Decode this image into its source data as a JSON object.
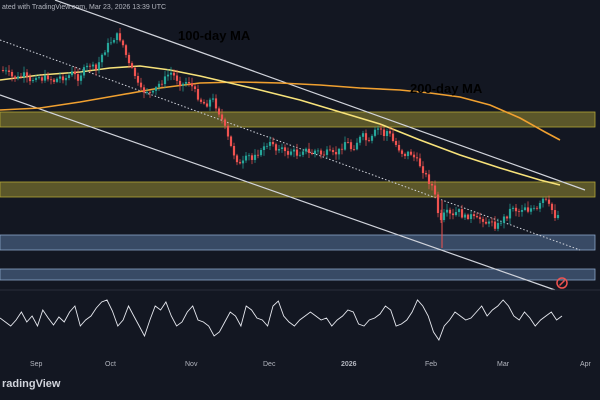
{
  "caption": "ated with TradingView.com, Mar 23, 2026 13:39 UTC",
  "brand": "radingView",
  "colors": {
    "background": "#131722",
    "up_candle": "#26a69a",
    "down_candle": "#ef5350",
    "ma100": "#f7e27a",
    "ma200": "#f0a030",
    "zone_yellow": "#b3a635",
    "zone_blue": "#5d7da8",
    "channel": "#d1d4dc",
    "rsi": "#e6e8ef"
  },
  "chart_data": {
    "type": "candlestick",
    "title": "",
    "xlabel": "",
    "ylabel": "",
    "x_ticks": [
      "Sep",
      "Oct",
      "Nov",
      "Dec",
      "2026",
      "Feb",
      "Mar",
      "Apr"
    ],
    "annotations": [
      {
        "text": "100-day MA",
        "color": "#f7e27a"
      },
      {
        "text": "200-day MA",
        "color": "#f0a030"
      }
    ],
    "close_path": [
      [
        0,
        70
      ],
      [
        6,
        72
      ],
      [
        12,
        77
      ],
      [
        18,
        78
      ],
      [
        24,
        75
      ],
      [
        30,
        83
      ],
      [
        36,
        75
      ],
      [
        42,
        79
      ],
      [
        48,
        77
      ],
      [
        54,
        81
      ],
      [
        60,
        77
      ],
      [
        66,
        78
      ],
      [
        72,
        73
      ],
      [
        78,
        78
      ],
      [
        84,
        70
      ],
      [
        90,
        65
      ],
      [
        96,
        70
      ],
      [
        102,
        55
      ],
      [
        108,
        45
      ],
      [
        114,
        38
      ],
      [
        118,
        35
      ],
      [
        122,
        42
      ],
      [
        126,
        55
      ],
      [
        130,
        68
      ],
      [
        134,
        72
      ],
      [
        138,
        85
      ],
      [
        142,
        92
      ],
      [
        146,
        90
      ],
      [
        152,
        95
      ],
      [
        158,
        85
      ],
      [
        164,
        80
      ],
      [
        170,
        72
      ],
      [
        176,
        78
      ],
      [
        182,
        85
      ],
      [
        188,
        80
      ],
      [
        194,
        90
      ],
      [
        200,
        100
      ],
      [
        206,
        105
      ],
      [
        212,
        98
      ],
      [
        218,
        110
      ],
      [
        224,
        125
      ],
      [
        228,
        138
      ],
      [
        232,
        150
      ],
      [
        236,
        158
      ],
      [
        240,
        165
      ],
      [
        244,
        162
      ],
      [
        248,
        155
      ],
      [
        252,
        160
      ],
      [
        256,
        150
      ],
      [
        260,
        155
      ],
      [
        264,
        145
      ],
      [
        268,
        148
      ],
      [
        272,
        140
      ],
      [
        276,
        150
      ],
      [
        280,
        145
      ],
      [
        286,
        155
      ],
      [
        292,
        150
      ],
      [
        298,
        155
      ],
      [
        304,
        148
      ],
      [
        310,
        155
      ],
      [
        316,
        150
      ],
      [
        322,
        155
      ],
      [
        328,
        152
      ],
      [
        334,
        155
      ],
      [
        340,
        150
      ],
      [
        346,
        140
      ],
      [
        352,
        150
      ],
      [
        358,
        140
      ],
      [
        364,
        135
      ],
      [
        368,
        145
      ],
      [
        372,
        138
      ],
      [
        376,
        130
      ],
      [
        380,
        128
      ],
      [
        384,
        135
      ],
      [
        388,
        130
      ],
      [
        392,
        140
      ],
      [
        396,
        145
      ],
      [
        400,
        150
      ],
      [
        404,
        155
      ],
      [
        410,
        152
      ],
      [
        416,
        160
      ],
      [
        420,
        165
      ],
      [
        424,
        172
      ],
      [
        428,
        180
      ],
      [
        432,
        186
      ],
      [
        436,
        200
      ],
      [
        440,
        225
      ],
      [
        444,
        215
      ],
      [
        448,
        212
      ],
      [
        452,
        218
      ],
      [
        458,
        210
      ],
      [
        464,
        218
      ],
      [
        470,
        215
      ],
      [
        476,
        220
      ],
      [
        482,
        218
      ],
      [
        488,
        225
      ],
      [
        492,
        220
      ],
      [
        496,
        228
      ],
      [
        500,
        222
      ],
      [
        504,
        218
      ],
      [
        508,
        215
      ],
      [
        512,
        205
      ],
      [
        516,
        210
      ],
      [
        520,
        212
      ],
      [
        524,
        205
      ],
      [
        528,
        210
      ],
      [
        532,
        208
      ],
      [
        536,
        212
      ],
      [
        540,
        205
      ],
      [
        544,
        198
      ],
      [
        548,
        205
      ],
      [
        552,
        210
      ],
      [
        556,
        218
      ],
      [
        560,
        212
      ]
    ],
    "ma100_path": [
      [
        0,
        80
      ],
      [
        40,
        75
      ],
      [
        80,
        72
      ],
      [
        110,
        68
      ],
      [
        140,
        66
      ],
      [
        170,
        70
      ],
      [
        200,
        76
      ],
      [
        230,
        83
      ],
      [
        260,
        90
      ],
      [
        300,
        100
      ],
      [
        340,
        112
      ],
      [
        380,
        124
      ],
      [
        420,
        140
      ],
      [
        460,
        155
      ],
      [
        500,
        168
      ],
      [
        540,
        180
      ],
      [
        560,
        185
      ]
    ],
    "ma200_path": [
      [
        0,
        110
      ],
      [
        40,
        108
      ],
      [
        80,
        102
      ],
      [
        120,
        95
      ],
      [
        160,
        88
      ],
      [
        200,
        83
      ],
      [
        240,
        82
      ],
      [
        280,
        83
      ],
      [
        320,
        85
      ],
      [
        360,
        88
      ],
      [
        400,
        90
      ],
      [
        430,
        93
      ],
      [
        460,
        97
      ],
      [
        490,
        105
      ],
      [
        520,
        118
      ],
      [
        545,
        132
      ],
      [
        560,
        140
      ]
    ],
    "channel_upper": [
      [
        55,
        0
      ],
      [
        585,
        190
      ]
    ],
    "channel_lower": [
      [
        0,
        95
      ],
      [
        555,
        290
      ]
    ],
    "channel_mid_dotted": [
      [
        0,
        40
      ],
      [
        580,
        250
      ]
    ],
    "zones_yellow": [
      [
        0,
        112,
        595,
        127
      ],
      [
        0,
        182,
        595,
        197
      ]
    ],
    "zones_blue": [
      [
        0,
        235,
        595,
        250
      ],
      [
        0,
        269,
        595,
        280
      ]
    ],
    "rsi": [
      318,
      322,
      326,
      320,
      312,
      322,
      316,
      326,
      310,
      318,
      325,
      317,
      322,
      312,
      306,
      326,
      320,
      316,
      308,
      302,
      300,
      311,
      326,
      320,
      306,
      316,
      326,
      336,
      320,
      306,
      310,
      302,
      316,
      326,
      322,
      312,
      306,
      320,
      322,
      326,
      336,
      332,
      322,
      312,
      316,
      326,
      306,
      310,
      318,
      320,
      326,
      306,
      301,
      316,
      322,
      326,
      320,
      316,
      312,
      316,
      320,
      318,
      326,
      320,
      316,
      310,
      312,
      324,
      326,
      320,
      318,
      314,
      306,
      310,
      326,
      324,
      320,
      312,
      300,
      306,
      316,
      332,
      340,
      326,
      320,
      312,
      316,
      320,
      318,
      312,
      306,
      316,
      310,
      306,
      300,
      306,
      316,
      320,
      312,
      318,
      326,
      320,
      316,
      312,
      320,
      316
    ]
  }
}
